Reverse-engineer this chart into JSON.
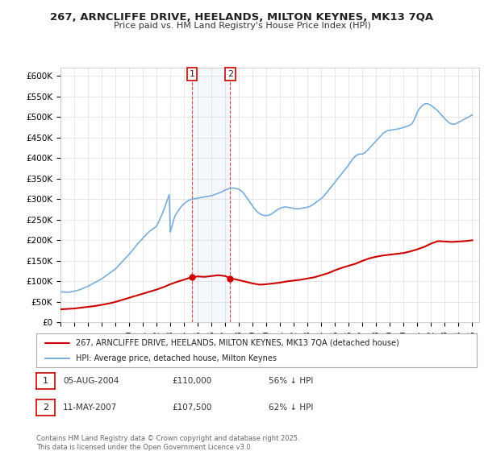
{
  "title": "267, ARNCLIFFE DRIVE, HEELANDS, MILTON KEYNES, MK13 7QA",
  "subtitle": "Price paid vs. HM Land Registry's House Price Index (HPI)",
  "ylim": [
    0,
    620000
  ],
  "yticks": [
    0,
    50000,
    100000,
    150000,
    200000,
    250000,
    300000,
    350000,
    400000,
    450000,
    500000,
    550000,
    600000
  ],
  "ytick_labels": [
    "£0",
    "£50K",
    "£100K",
    "£150K",
    "£200K",
    "£250K",
    "£300K",
    "£350K",
    "£400K",
    "£450K",
    "£500K",
    "£550K",
    "£600K"
  ],
  "xlim_start": 1995.0,
  "xlim_end": 2025.5,
  "marker1_x": 2004.59,
  "marker2_x": 2007.36,
  "marker1_label": "1",
  "marker2_label": "2",
  "table_rows": [
    [
      "1",
      "05-AUG-2004",
      "£110,000",
      "56% ↓ HPI"
    ],
    [
      "2",
      "11-MAY-2007",
      "£107,500",
      "62% ↓ HPI"
    ]
  ],
  "legend_line1": "267, ARNCLIFFE DRIVE, HEELANDS, MILTON KEYNES, MK13 7QA (detached house)",
  "legend_line2": "HPI: Average price, detached house, Milton Keynes",
  "footer": "Contains HM Land Registry data © Crown copyright and database right 2025.\nThis data is licensed under the Open Government Licence v3.0.",
  "red_color": "#cc0000",
  "blue_color": "#7aaddb",
  "background_color": "#ffffff",
  "grid_color": "#dddddd",
  "hpi_x": [
    1995.0,
    1995.08,
    1995.17,
    1995.25,
    1995.33,
    1995.42,
    1995.5,
    1995.58,
    1995.67,
    1995.75,
    1995.83,
    1995.92,
    1996.0,
    1996.08,
    1996.17,
    1996.25,
    1996.33,
    1996.42,
    1996.5,
    1996.58,
    1996.67,
    1996.75,
    1996.83,
    1996.92,
    1997.0,
    1997.08,
    1997.17,
    1997.25,
    1997.33,
    1997.42,
    1997.5,
    1997.58,
    1997.67,
    1997.75,
    1997.83,
    1997.92,
    1998.0,
    1998.08,
    1998.17,
    1998.25,
    1998.33,
    1998.42,
    1998.5,
    1998.58,
    1998.67,
    1998.75,
    1998.83,
    1998.92,
    1999.0,
    1999.08,
    1999.17,
    1999.25,
    1999.33,
    1999.42,
    1999.5,
    1999.58,
    1999.67,
    1999.75,
    1999.83,
    1999.92,
    2000.0,
    2000.08,
    2000.17,
    2000.25,
    2000.33,
    2000.42,
    2000.5,
    2000.58,
    2000.67,
    2000.75,
    2000.83,
    2000.92,
    2001.0,
    2001.08,
    2001.17,
    2001.25,
    2001.33,
    2001.42,
    2001.5,
    2001.58,
    2001.67,
    2001.75,
    2001.83,
    2001.92,
    2002.0,
    2002.08,
    2002.17,
    2002.25,
    2002.33,
    2002.42,
    2002.5,
    2002.58,
    2002.67,
    2002.75,
    2002.83,
    2002.92,
    2003.0,
    2003.08,
    2003.17,
    2003.25,
    2003.33,
    2003.42,
    2003.5,
    2003.58,
    2003.67,
    2003.75,
    2003.83,
    2003.92,
    2004.0,
    2004.08,
    2004.17,
    2004.25,
    2004.33,
    2004.42,
    2004.5,
    2004.58,
    2004.67,
    2004.75,
    2004.83,
    2004.92,
    2005.0,
    2005.08,
    2005.17,
    2005.25,
    2005.33,
    2005.42,
    2005.5,
    2005.58,
    2005.67,
    2005.75,
    2005.83,
    2005.92,
    2006.0,
    2006.08,
    2006.17,
    2006.25,
    2006.33,
    2006.42,
    2006.5,
    2006.58,
    2006.67,
    2006.75,
    2006.83,
    2006.92,
    2007.0,
    2007.08,
    2007.17,
    2007.25,
    2007.33,
    2007.42,
    2007.5,
    2007.58,
    2007.67,
    2007.75,
    2007.83,
    2007.92,
    2008.0,
    2008.08,
    2008.17,
    2008.25,
    2008.33,
    2008.42,
    2008.5,
    2008.58,
    2008.67,
    2008.75,
    2008.83,
    2008.92,
    2009.0,
    2009.08,
    2009.17,
    2009.25,
    2009.33,
    2009.42,
    2009.5,
    2009.58,
    2009.67,
    2009.75,
    2009.83,
    2009.92,
    2010.0,
    2010.08,
    2010.17,
    2010.25,
    2010.33,
    2010.42,
    2010.5,
    2010.58,
    2010.67,
    2010.75,
    2010.83,
    2010.92,
    2011.0,
    2011.08,
    2011.17,
    2011.25,
    2011.33,
    2011.42,
    2011.5,
    2011.58,
    2011.67,
    2011.75,
    2011.83,
    2011.92,
    2012.0,
    2012.08,
    2012.17,
    2012.25,
    2012.33,
    2012.42,
    2012.5,
    2012.58,
    2012.67,
    2012.75,
    2012.83,
    2012.92,
    2013.0,
    2013.08,
    2013.17,
    2013.25,
    2013.33,
    2013.42,
    2013.5,
    2013.58,
    2013.67,
    2013.75,
    2013.83,
    2013.92,
    2014.0,
    2014.08,
    2014.17,
    2014.25,
    2014.33,
    2014.42,
    2014.5,
    2014.58,
    2014.67,
    2014.75,
    2014.83,
    2014.92,
    2015.0,
    2015.08,
    2015.17,
    2015.25,
    2015.33,
    2015.42,
    2015.5,
    2015.58,
    2015.67,
    2015.75,
    2015.83,
    2015.92,
    2016.0,
    2016.08,
    2016.17,
    2016.25,
    2016.33,
    2016.42,
    2016.5,
    2016.58,
    2016.67,
    2016.75,
    2016.83,
    2016.92,
    2017.0,
    2017.08,
    2017.17,
    2017.25,
    2017.33,
    2017.42,
    2017.5,
    2017.58,
    2017.67,
    2017.75,
    2017.83,
    2017.92,
    2018.0,
    2018.08,
    2018.17,
    2018.25,
    2018.33,
    2018.42,
    2018.5,
    2018.58,
    2018.67,
    2018.75,
    2018.83,
    2018.92,
    2019.0,
    2019.08,
    2019.17,
    2019.25,
    2019.33,
    2019.42,
    2019.5,
    2019.58,
    2019.67,
    2019.75,
    2019.83,
    2019.92,
    2020.0,
    2020.08,
    2020.17,
    2020.25,
    2020.33,
    2020.42,
    2020.5,
    2020.58,
    2020.67,
    2020.75,
    2020.83,
    2020.92,
    2021.0,
    2021.08,
    2021.17,
    2021.25,
    2021.33,
    2021.42,
    2021.5,
    2021.58,
    2021.67,
    2021.75,
    2021.83,
    2021.92,
    2022.0,
    2022.08,
    2022.17,
    2022.25,
    2022.33,
    2022.42,
    2022.5,
    2022.58,
    2022.67,
    2022.75,
    2022.83,
    2022.92,
    2023.0,
    2023.08,
    2023.17,
    2023.25,
    2023.33,
    2023.42,
    2023.5,
    2023.58,
    2023.67,
    2023.75,
    2023.83,
    2023.92,
    2024.0,
    2024.08,
    2024.17,
    2024.25,
    2024.33,
    2024.42,
    2024.5,
    2024.58,
    2024.67,
    2024.75,
    2024.83,
    2024.92,
    2025.0
  ],
  "hpi_y": [
    75000,
    74500,
    74200,
    74000,
    73800,
    73600,
    73500,
    73600,
    73800,
    74200,
    74800,
    75500,
    76000,
    76800,
    77500,
    78200,
    79000,
    80000,
    81200,
    82500,
    83800,
    85000,
    86000,
    87000,
    88000,
    89500,
    91000,
    92500,
    94000,
    95500,
    97000,
    98500,
    100000,
    101500,
    103000,
    104500,
    106000,
    108000,
    110000,
    112000,
    114000,
    116000,
    118000,
    120000,
    122000,
    124000,
    126000,
    128000,
    130000,
    133000,
    136000,
    139000,
    142000,
    145000,
    148000,
    151000,
    154000,
    157000,
    160000,
    163000,
    166000,
    169000,
    172500,
    176000,
    179500,
    183000,
    186500,
    190000,
    193000,
    196000,
    199000,
    202000,
    205000,
    208000,
    211000,
    214000,
    217000,
    220000,
    222000,
    224000,
    226000,
    228000,
    230000,
    232000,
    234000,
    240000,
    246000,
    252000,
    258000,
    265000,
    272000,
    279000,
    287000,
    295000,
    303000,
    311000,
    220000,
    230000,
    240000,
    250000,
    258000,
    264000,
    268000,
    272000,
    276000,
    280000,
    283000,
    286000,
    289000,
    291000,
    293000,
    295000,
    297000,
    298000,
    299000,
    300000,
    300500,
    301000,
    301500,
    302000,
    302500,
    303000,
    303500,
    304000,
    304500,
    305000,
    305500,
    306000,
    306500,
    307000,
    307500,
    308000,
    308500,
    309500,
    310500,
    311500,
    312500,
    313500,
    314500,
    315500,
    316500,
    318000,
    319500,
    321000,
    322500,
    323500,
    324500,
    325500,
    326000,
    326500,
    327000,
    327000,
    326500,
    326000,
    325500,
    325000,
    324000,
    322000,
    320000,
    318000,
    315000,
    311000,
    307000,
    303000,
    299000,
    295000,
    291000,
    287000,
    283000,
    279000,
    275500,
    272000,
    269000,
    267000,
    265000,
    263500,
    262000,
    261000,
    260500,
    260000,
    260000,
    260500,
    261000,
    262000,
    263500,
    265000,
    267000,
    269000,
    271000,
    273000,
    275000,
    276500,
    278000,
    279000,
    280000,
    280500,
    281000,
    281000,
    280500,
    280000,
    279500,
    279000,
    278500,
    278000,
    277500,
    277000,
    276500,
    276500,
    276500,
    277000,
    277500,
    278000,
    278500,
    279000,
    279500,
    280000,
    280500,
    281500,
    282500,
    284000,
    285500,
    287500,
    289500,
    291500,
    293500,
    295500,
    297500,
    299500,
    301500,
    304000,
    307000,
    310000,
    313500,
    317000,
    320500,
    324000,
    327500,
    331000,
    334500,
    338000,
    341500,
    345000,
    348500,
    352000,
    355500,
    359000,
    362500,
    366000,
    369500,
    373000,
    376500,
    380000,
    384000,
    388000,
    392000,
    396000,
    399500,
    402500,
    405000,
    407000,
    408500,
    409500,
    410000,
    410000,
    410000,
    411000,
    413000,
    415500,
    418000,
    421000,
    424000,
    427000,
    430000,
    433000,
    436000,
    439000,
    442000,
    445000,
    448000,
    451000,
    454000,
    457000,
    460000,
    462000,
    464000,
    465500,
    466500,
    467000,
    467500,
    468000,
    468500,
    469000,
    469500,
    470000,
    470500,
    471000,
    471500,
    472000,
    473000,
    474000,
    474500,
    475500,
    476500,
    477500,
    478500,
    479500,
    481000,
    483000,
    487000,
    492000,
    498000,
    505000,
    512000,
    517000,
    521000,
    524000,
    527000,
    529000,
    531000,
    532000,
    532500,
    532000,
    531000,
    529500,
    528000,
    526000,
    524000,
    522000,
    519500,
    517000,
    514000,
    511000,
    508000,
    505000,
    502000,
    499000,
    496000,
    493000,
    490000,
    487500,
    485500,
    484000,
    483000,
    482500,
    482500,
    483000,
    484000,
    485500,
    487000,
    488500,
    490000,
    491500,
    493000,
    494500,
    496000,
    497500,
    499000,
    500500,
    502000,
    503500,
    505000
  ],
  "red_x": [
    1995.0,
    1995.5,
    1996.0,
    1996.5,
    1997.0,
    1997.5,
    1998.0,
    1998.5,
    1999.0,
    1999.5,
    2000.0,
    2000.5,
    2001.0,
    2001.5,
    2002.0,
    2002.5,
    2003.0,
    2003.5,
    2004.0,
    2004.25,
    2004.59,
    2005.0,
    2005.5,
    2006.0,
    2006.5,
    2007.0,
    2007.36,
    2007.75,
    2008.0,
    2008.5,
    2009.0,
    2009.5,
    2010.0,
    2010.5,
    2011.0,
    2011.5,
    2012.0,
    2012.5,
    2013.0,
    2013.5,
    2014.0,
    2014.5,
    2015.0,
    2015.5,
    2016.0,
    2016.5,
    2017.0,
    2017.5,
    2018.0,
    2018.5,
    2019.0,
    2019.5,
    2020.0,
    2020.5,
    2021.0,
    2021.5,
    2022.0,
    2022.5,
    2023.0,
    2023.5,
    2024.0,
    2024.5,
    2025.0
  ],
  "red_y": [
    32000,
    33000,
    34000,
    36000,
    38000,
    40000,
    43000,
    46000,
    50000,
    55000,
    60000,
    65000,
    70000,
    75000,
    80000,
    86000,
    93000,
    99000,
    104000,
    107000,
    110000,
    112000,
    111000,
    113000,
    115000,
    113000,
    107500,
    105000,
    103000,
    99000,
    95000,
    92000,
    93000,
    95000,
    97000,
    100000,
    102000,
    104000,
    107000,
    110000,
    115000,
    120000,
    127000,
    133000,
    138000,
    143000,
    150000,
    156000,
    160000,
    163000,
    165000,
    167000,
    169000,
    173000,
    178000,
    184000,
    192000,
    198000,
    197000,
    196000,
    197000,
    198000,
    200000
  ]
}
